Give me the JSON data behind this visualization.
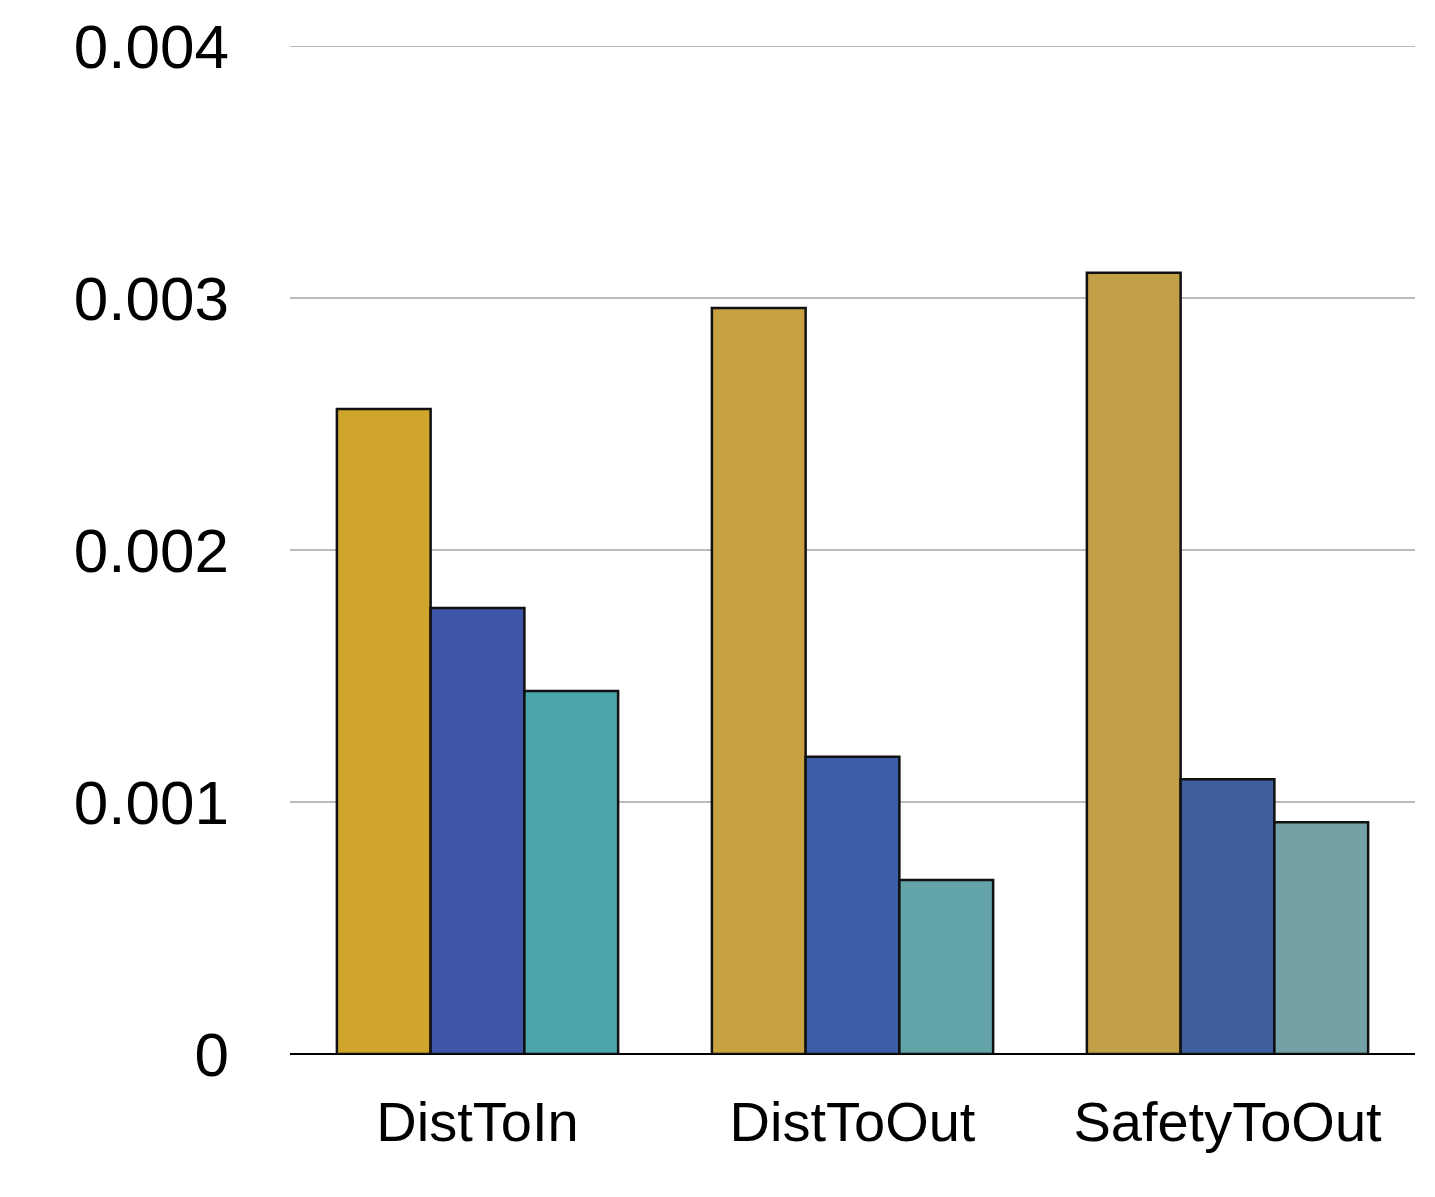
{
  "chart_data": {
    "type": "bar",
    "categories": [
      "DistToIn",
      "DistToOut",
      "SafetyToOut"
    ],
    "series": [
      {
        "colors": [
          "#d0a52c",
          "#c8a240",
          "#c2a048"
        ],
        "values": [
          0.00256,
          0.00296,
          0.0031
        ]
      },
      {
        "colors": [
          "#3f56a8",
          "#3c5ca6",
          "#3f5e9e"
        ],
        "values": [
          0.00177,
          0.00118,
          0.00109
        ]
      },
      {
        "colors": [
          "#4aa5aa",
          "#62a4a8",
          "#74a1a6"
        ],
        "values": [
          0.00144,
          0.00069,
          0.00092
        ]
      }
    ],
    "ylim": [
      0,
      0.004
    ],
    "yticks": [
      0,
      0.001,
      0.002,
      0.003,
      0.004
    ],
    "grid": "y"
  }
}
